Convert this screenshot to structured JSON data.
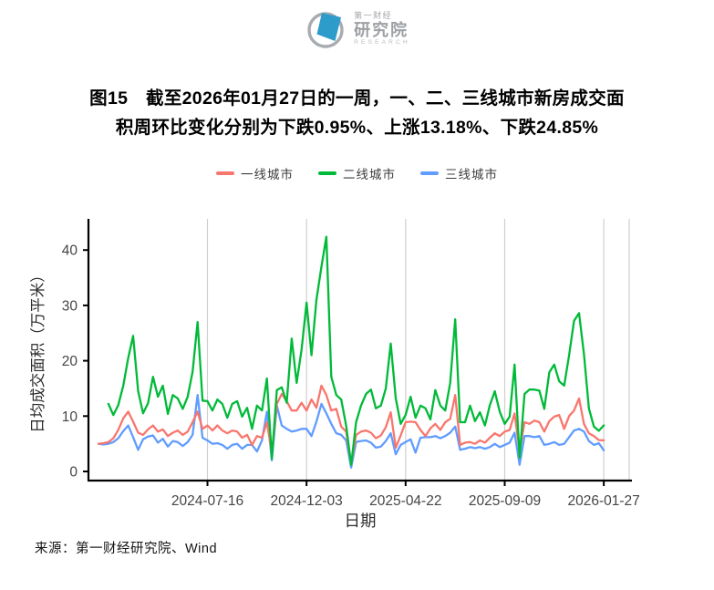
{
  "page": {
    "background": "#ffffff"
  },
  "logo": {
    "brand_top": "第一财经",
    "brand_main": "研究院",
    "brand_sub": "RESEARCH",
    "circle_color": "#a8abb0",
    "shape_color": "#2e9cca"
  },
  "title": {
    "lines": [
      "图15　截至2026年01月27日的一周，一、二、三线城市新房成交面",
      "积周环比变化分别为下跌0.95%、上涨13.18%、下跌24.85%"
    ]
  },
  "source": {
    "text": "来源：第一财经研究院、Wind"
  },
  "chart_data": {
    "type": "line",
    "xlabel": "日期",
    "ylabel": "日均成交面积（万平米）",
    "y_ticks": [
      0,
      10,
      20,
      30,
      40
    ],
    "ylim": [
      -1.5,
      46
    ],
    "x_tick_labels": [
      "2024-07-16",
      "2024-12-03",
      "2025-04-22",
      "2025-09-09",
      "2026-01-27"
    ],
    "x_tick_positions": [
      22,
      42,
      62,
      82,
      102
    ],
    "n_points": 103,
    "grid": "vertical-only",
    "grid_color": "#cfcfcf",
    "axis_color": "#000000",
    "tick_text_color": "#454545",
    "legend_position": "top",
    "series": [
      {
        "name": "一线城市",
        "key": "tier1",
        "color": "#F8766D",
        "values": [
          5.0,
          5.1,
          5.3,
          6.0,
          7.5,
          9.6,
          10.8,
          9.0,
          7.0,
          6.6,
          7.6,
          8.3,
          7.2,
          7.6,
          6.4,
          7.0,
          7.4,
          6.6,
          7.2,
          8.9,
          10.8,
          7.7,
          8.3,
          7.4,
          8.3,
          7.4,
          6.9,
          7.4,
          7.2,
          6.1,
          6.6,
          4.8,
          6.4,
          6.1,
          8.9,
          3.3,
          12.2,
          14.0,
          12.7,
          11.0,
          11.0,
          12.4,
          11.0,
          13.0,
          11.5,
          15.5,
          13.8,
          11.0,
          11.3,
          8.1,
          7.2,
          1.4,
          6.6,
          7.2,
          7.4,
          7.0,
          6.0,
          6.5,
          8.0,
          10.7,
          4.3,
          6.5,
          8.9,
          9.0,
          8.9,
          7.5,
          6.4,
          7.8,
          8.6,
          7.5,
          8.9,
          9.5,
          13.8,
          4.8,
          5.2,
          5.3,
          5.0,
          5.6,
          5.2,
          6.1,
          6.9,
          6.4,
          7.2,
          7.5,
          10.5,
          3.6,
          8.9,
          8.6,
          9.2,
          8.9,
          7.2,
          9.1,
          9.9,
          10.2,
          7.7,
          10.0,
          11.0,
          13.2,
          8.6,
          6.9,
          6.4,
          5.67,
          5.62
        ]
      },
      {
        "name": "二线城市",
        "key": "tier2",
        "color": "#00BA38",
        "values": [
          null,
          null,
          12.2,
          10.2,
          12.0,
          15.5,
          20.5,
          24.5,
          14.5,
          10.5,
          12.3,
          17.1,
          13.5,
          15.5,
          10.4,
          13.8,
          13.2,
          11.3,
          13.5,
          18.0,
          27.0,
          12.8,
          12.7,
          11.0,
          13.0,
          12.2,
          9.7,
          12.2,
          12.7,
          9.9,
          11.5,
          7.7,
          11.9,
          11.0,
          16.8,
          2.3,
          14.7,
          15.2,
          12.4,
          24.0,
          16.0,
          22.0,
          30.5,
          21.0,
          31.0,
          37.0,
          42.4,
          17.1,
          13.8,
          13.0,
          8.3,
          1.2,
          8.9,
          11.9,
          14.0,
          14.8,
          11.4,
          11.9,
          15.0,
          23.1,
          13.2,
          8.6,
          10.2,
          13.5,
          9.7,
          11.9,
          11.4,
          9.4,
          14.7,
          11.9,
          11.0,
          16.0,
          27.5,
          8.9,
          8.9,
          11.9,
          9.1,
          10.7,
          8.3,
          12.0,
          14.5,
          10.8,
          8.6,
          9.9,
          19.3,
          2.5,
          14.0,
          14.8,
          14.8,
          14.6,
          11.3,
          17.9,
          19.3,
          16.3,
          15.5,
          21.0,
          27.2,
          28.6,
          21.2,
          11.4,
          8.1,
          7.35,
          8.32
        ]
      },
      {
        "name": "三线城市",
        "key": "tier3",
        "color": "#619CFF",
        "values": [
          5.0,
          4.9,
          5.0,
          5.3,
          6.0,
          7.3,
          8.3,
          6.2,
          3.9,
          5.8,
          6.3,
          6.5,
          5.2,
          5.9,
          4.5,
          5.5,
          5.3,
          4.6,
          5.3,
          6.6,
          13.8,
          6.1,
          5.6,
          5.0,
          5.1,
          4.8,
          4.1,
          4.8,
          5.0,
          4.1,
          4.8,
          4.8,
          3.6,
          5.6,
          10.8,
          2.0,
          11.9,
          8.3,
          7.7,
          7.2,
          7.4,
          7.7,
          7.7,
          6.4,
          9.0,
          12.2,
          10.5,
          8.6,
          6.9,
          6.6,
          5.6,
          0.7,
          5.3,
          5.5,
          5.6,
          5.2,
          4.3,
          4.5,
          5.5,
          6.9,
          3.1,
          4.8,
          5.3,
          5.8,
          3.4,
          6.1,
          6.2,
          6.2,
          6.4,
          6.0,
          6.4,
          7.0,
          8.1,
          3.9,
          4.1,
          4.4,
          4.2,
          4.4,
          4.1,
          4.4,
          5.0,
          4.4,
          4.8,
          5.2,
          7.0,
          1.2,
          6.4,
          6.4,
          6.2,
          6.4,
          4.8,
          5.0,
          5.3,
          4.8,
          5.0,
          6.2,
          7.4,
          7.7,
          7.2,
          5.5,
          4.8,
          5.1,
          3.83
        ]
      }
    ]
  }
}
